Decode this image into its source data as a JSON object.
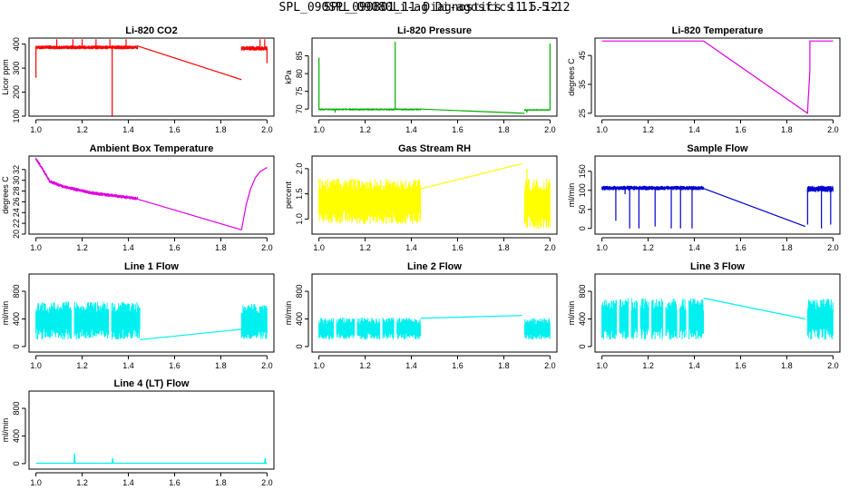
{
  "figure": {
    "title_layers": [
      "SPL_090SPL_09080Li-ag Di-agosfics 11.5-12",
      "SPL_090801_11 Diagnostics 11.5-12"
    ]
  },
  "chart_data": [
    {
      "type": "line",
      "title": "Li-820 CO2",
      "ylabel": "Licor ppm",
      "color": "#ff0000",
      "xlim": [
        0.97,
        2.03
      ],
      "ylim": [
        100,
        425
      ],
      "xticks": [
        "1.0",
        "1.2",
        "1.4",
        "1.6",
        "1.8",
        "2.0"
      ],
      "yticks": [
        "100",
        "200",
        "300",
        "400"
      ],
      "noisy": [
        {
          "x": [
            1.0,
            1.44
          ],
          "lo": 378,
          "hi": 395,
          "spikes": [
            [
              1.0,
              260
            ],
            [
              1.09,
              420
            ],
            [
              1.16,
              420
            ],
            [
              1.2,
              420
            ],
            [
              1.26,
              420
            ],
            [
              1.32,
              420
            ],
            [
              1.33,
              100
            ],
            [
              1.39,
              420
            ]
          ]
        },
        {
          "x": [
            1.89,
            2.0
          ],
          "lo": 372,
          "hi": 392,
          "spikes": [
            [
              1.97,
              420
            ],
            [
              1.99,
              420
            ],
            [
              2.0,
              320
            ]
          ]
        }
      ],
      "lines": [
        {
          "x": [
            1.44,
            1.89
          ],
          "y": [
            392,
            252
          ]
        }
      ]
    },
    {
      "type": "line",
      "title": "Li-820 Pressure",
      "ylabel": "kPa",
      "color": "#00b000",
      "xlim": [
        0.97,
        2.03
      ],
      "ylim": [
        68,
        90
      ],
      "xticks": [
        "1.0",
        "1.2",
        "1.4",
        "1.6",
        "1.8",
        "2.0"
      ],
      "yticks": [
        "70",
        "75",
        "80",
        "85"
      ],
      "noisy": [
        {
          "x": [
            1.0,
            1.44
          ],
          "lo": 69.6,
          "hi": 70.2,
          "spikes": [
            [
              1.0,
              84.5
            ],
            [
              1.33,
              89
            ],
            [
              1.07,
              69
            ]
          ]
        },
        {
          "x": [
            1.89,
            2.0
          ],
          "lo": 69.5,
          "hi": 70.0,
          "spikes": [
            [
              2.0,
              88.5
            ],
            [
              1.9,
              69
            ]
          ]
        }
      ],
      "lines": [
        {
          "x": [
            1.44,
            1.89
          ],
          "y": [
            70,
            68.8
          ]
        }
      ]
    },
    {
      "type": "line",
      "title": "Li-820 Temperature",
      "ylabel": "degrees C",
      "color": "#e000e0",
      "xlim": [
        0.97,
        2.03
      ],
      "ylim": [
        24,
        51
      ],
      "xticks": [
        "1.0",
        "1.2",
        "1.4",
        "1.6",
        "1.8",
        "2.0"
      ],
      "yticks": [
        "25",
        "35",
        "45"
      ],
      "noisy": [],
      "lines": [
        {
          "x": [
            1.0,
            1.44,
            1.89,
            1.893,
            1.9,
            1.9,
            2.0
          ],
          "y": [
            50,
            50,
            25,
            30,
            40,
            50,
            50
          ]
        }
      ]
    },
    {
      "type": "line",
      "title": "Ambient Box Temperature",
      "ylabel": "degrees C",
      "color": "#e000e0",
      "xlim": [
        0.97,
        2.03
      ],
      "ylim": [
        20,
        34.5
      ],
      "xticks": [
        "1.0",
        "1.2",
        "1.4",
        "1.6",
        "1.8",
        "2.0"
      ],
      "yticks": [
        "20",
        "22",
        "24",
        "26",
        "28",
        "30",
        "32"
      ],
      "noisy": [
        {
          "x": [
            1.0,
            1.44
          ],
          "lo": 0,
          "hi": 0,
          "band": 0.7,
          "curve": [
            [
              1.0,
              34
            ],
            [
              1.03,
              32
            ],
            [
              1.06,
              29.8
            ],
            [
              1.12,
              28.8
            ],
            [
              1.25,
              27.6
            ],
            [
              1.44,
              26.6
            ]
          ]
        }
      ],
      "lines": [
        {
          "x": [
            1.44,
            1.89
          ],
          "y": [
            26.5,
            20.8
          ]
        },
        {
          "x": [
            1.89,
            1.91,
            1.93,
            1.95,
            1.97,
            2.0
          ],
          "y": [
            20.8,
            25.5,
            28.5,
            30.5,
            31.6,
            32.4
          ]
        }
      ]
    },
    {
      "type": "line",
      "title": "Gas Stream RH",
      "ylabel": "percent",
      "color": "#ffff00",
      "xlim": [
        0.97,
        2.03
      ],
      "ylim": [
        0.7,
        2.25
      ],
      "xticks": [
        "1.0",
        "1.2",
        "1.4",
        "1.6",
        "1.8",
        "2.0"
      ],
      "yticks": [
        "1.0",
        "1.5",
        "2.0"
      ],
      "noisy": [
        {
          "x": [
            1.0,
            1.44
          ],
          "lo": 0.9,
          "hi": 1.8,
          "spikes": []
        },
        {
          "x": [
            1.89,
            2.0
          ],
          "lo": 0.8,
          "hi": 1.8,
          "spikes": [
            [
              1.9,
              2.0
            ]
          ]
        }
      ],
      "lines": [
        {
          "x": [
            1.44,
            1.88
          ],
          "y": [
            1.6,
            2.1
          ]
        }
      ]
    },
    {
      "type": "line",
      "title": "Sample Flow",
      "ylabel": "ml/min",
      "color": "#0000d0",
      "xlim": [
        0.97,
        2.03
      ],
      "ylim": [
        -15,
        190
      ],
      "xticks": [
        "1.0",
        "1.2",
        "1.4",
        "1.6",
        "1.8",
        "2.0"
      ],
      "yticks": [
        "0",
        "50",
        "100",
        "150"
      ],
      "noisy": [
        {
          "x": [
            1.0,
            1.44
          ],
          "lo": 100,
          "hi": 112,
          "spikes": [
            [
              1.06,
              20
            ],
            [
              1.12,
              0
            ],
            [
              1.16,
              0
            ],
            [
              1.23,
              5
            ],
            [
              1.3,
              0
            ],
            [
              1.34,
              0
            ],
            [
              1.39,
              0
            ],
            [
              1.1,
              90
            ]
          ]
        },
        {
          "x": [
            1.89,
            2.0
          ],
          "lo": 95,
          "hi": 112,
          "spikes": [
            [
              1.89,
              10
            ],
            [
              1.95,
              0
            ],
            [
              1.99,
              10
            ]
          ]
        }
      ],
      "lines": [
        {
          "x": [
            1.44,
            1.88
          ],
          "y": [
            105,
            5
          ]
        }
      ]
    },
    {
      "type": "line",
      "title": "Line 1 Flow",
      "ylabel": "ml/min",
      "color": "#00f0f0",
      "xlim": [
        0.97,
        2.03
      ],
      "ylim": [
        -80,
        1050
      ],
      "xticks": [
        "1.0",
        "1.2",
        "1.4",
        "1.6",
        "1.8",
        "2.0"
      ],
      "yticks": [
        "0",
        "400",
        "800"
      ],
      "noisy": [
        {
          "x": [
            1.0,
            1.45
          ],
          "lo": 100,
          "hi": 650,
          "spikes": [],
          "gaps": [
            1.16,
            1.32
          ]
        },
        {
          "x": [
            1.89,
            2.0
          ],
          "lo": 100,
          "hi": 620,
          "spikes": []
        }
      ],
      "lines": [
        {
          "x": [
            1.45,
            1.89
          ],
          "y": [
            100,
            250
          ]
        }
      ]
    },
    {
      "type": "line",
      "title": "Line 2 Flow",
      "ylabel": "ml/min",
      "color": "#00f0f0",
      "xlim": [
        0.97,
        2.03
      ],
      "ylim": [
        -80,
        1050
      ],
      "xticks": [
        "1.0",
        "1.2",
        "1.4",
        "1.6",
        "1.8",
        "2.0"
      ],
      "yticks": [
        "0",
        "400",
        "800"
      ],
      "noisy": [
        {
          "x": [
            1.0,
            1.44
          ],
          "lo": 100,
          "hi": 420,
          "spikes": [],
          "gaps": [
            1.07,
            1.16,
            1.27,
            1.33
          ]
        },
        {
          "x": [
            1.89,
            2.0
          ],
          "lo": 100,
          "hi": 410,
          "spikes": []
        }
      ],
      "lines": [
        {
          "x": [
            1.44,
            1.88
          ],
          "y": [
            410,
            450
          ]
        }
      ]
    },
    {
      "type": "line",
      "title": "Line 3 Flow",
      "ylabel": "ml/min",
      "color": "#00f0f0",
      "xlim": [
        0.97,
        2.03
      ],
      "ylim": [
        -80,
        1050
      ],
      "xticks": [
        "1.0",
        "1.2",
        "1.4",
        "1.6",
        "1.8",
        "2.0"
      ],
      "yticks": [
        "0",
        "400",
        "800"
      ],
      "noisy": [
        {
          "x": [
            1.0,
            1.44
          ],
          "lo": 100,
          "hi": 700,
          "spikes": [],
          "gaps": [
            1.07,
            1.12,
            1.16,
            1.21,
            1.27,
            1.33,
            1.37
          ]
        },
        {
          "x": [
            1.89,
            2.0
          ],
          "lo": 100,
          "hi": 700,
          "spikes": []
        }
      ],
      "lines": [
        {
          "x": [
            1.44,
            1.88
          ],
          "y": [
            700,
            400
          ]
        }
      ]
    },
    {
      "type": "line",
      "title": "Line 4 (LT) Flow",
      "ylabel": "ml/min",
      "color": "#00f0f0",
      "xlim": [
        0.97,
        2.03
      ],
      "ylim": [
        -80,
        1050
      ],
      "xticks": [
        "1.0",
        "1.2",
        "1.4",
        "1.6",
        "1.8",
        "2.0"
      ],
      "yticks": [
        "0",
        "400",
        "800"
      ],
      "noisy": [],
      "lines": [
        {
          "x": [
            1.0,
            1.165,
            1.167,
            1.169,
            1.33,
            1.332,
            1.334,
            1.99,
            1.992,
            1.994,
            2.0
          ],
          "y": [
            5,
            5,
            150,
            5,
            5,
            80,
            5,
            5,
            80,
            5,
            5
          ]
        }
      ]
    }
  ]
}
